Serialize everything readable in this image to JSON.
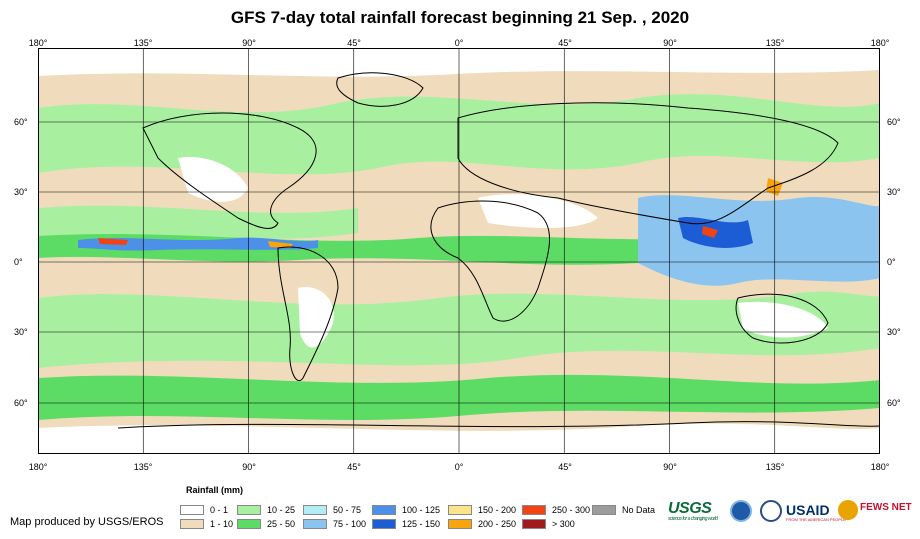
{
  "title": "GFS 7-day total rainfall forecast beginning 21 Sep. , 2020",
  "longitude_labels": [
    "180°",
    "135°",
    "90°",
    "45°",
    "0°",
    "45°",
    "90°",
    "135°",
    "180°"
  ],
  "latitude_labels": [
    "60°",
    "30°",
    "0°",
    "30°",
    "60°"
  ],
  "legend": {
    "title": "Rainfall (mm)",
    "items": [
      {
        "label": "0 - 1",
        "color": "#ffffff"
      },
      {
        "label": "1 - 10",
        "color": "#f0dcbc"
      },
      {
        "label": "10 - 25",
        "color": "#a8f0a0"
      },
      {
        "label": "25 - 50",
        "color": "#5cdc64"
      },
      {
        "label": "50 - 75",
        "color": "#b4ecf4"
      },
      {
        "label": "75 - 100",
        "color": "#8cc4f0"
      },
      {
        "label": "100 - 125",
        "color": "#4c90e8"
      },
      {
        "label": "125 - 150",
        "color": "#1c5cd4"
      },
      {
        "label": "150 - 200",
        "color": "#fce48c"
      },
      {
        "label": "200 - 250",
        "color": "#f8a40c"
      },
      {
        "label": "250 - 300",
        "color": "#f04414"
      },
      {
        "label": "> 300",
        "color": "#a01c1c"
      },
      {
        "label": "No Data",
        "color": "#9c9c9c"
      }
    ]
  },
  "credit": "Map produced by USGS/EROS",
  "logos": {
    "usgs": "USGS",
    "usgs_tagline": "science for a changing world",
    "noaa": "noaa-logo-icon",
    "state": "state-seal-icon",
    "usaid": "USAID",
    "usaid_tagline": "FROM THE AMERICAN PEOPLE",
    "fews": "FEWS NET"
  }
}
